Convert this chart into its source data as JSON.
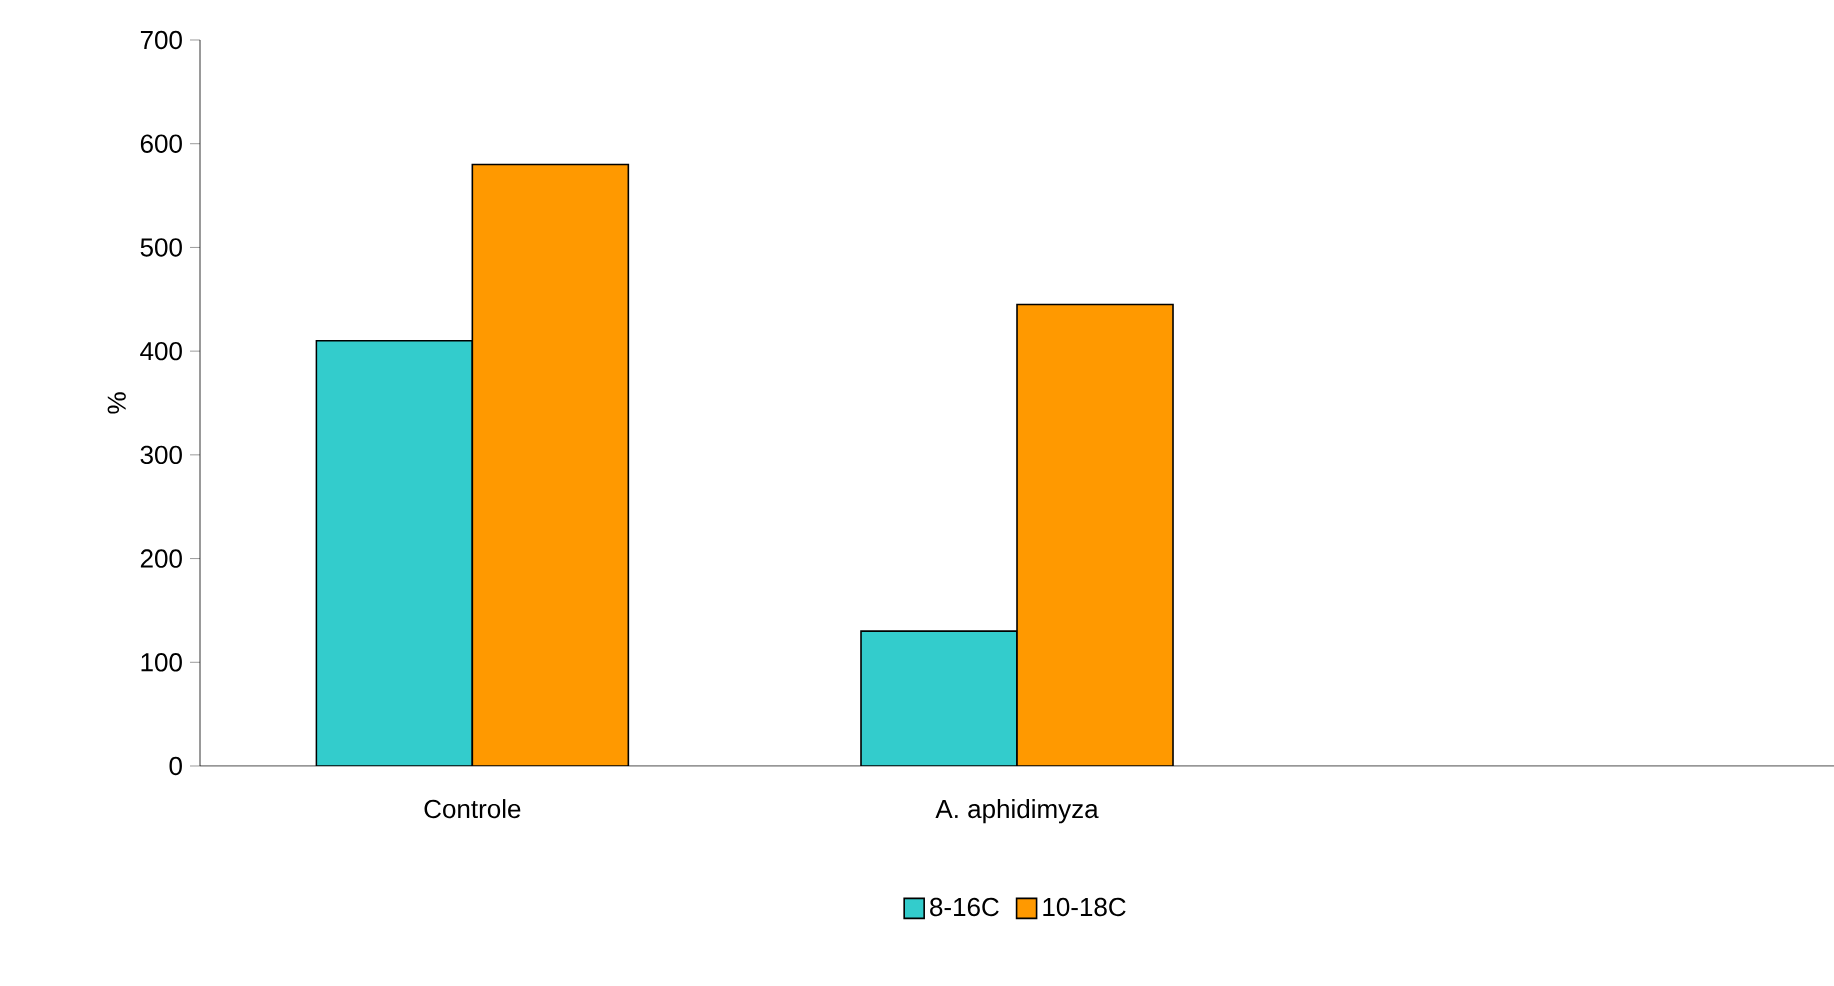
{
  "chart_data": {
    "type": "bar",
    "ylabel": "%",
    "categories": [
      "Controle",
      "A. aphidimyza",
      null
    ],
    "series": [
      {
        "name": "8-16C",
        "color": "#33cccc",
        "values": [
          410,
          130,
          null
        ]
      },
      {
        "name": "10-18C",
        "color": "#ff9900",
        "values": [
          580,
          445,
          null
        ]
      }
    ],
    "ylim": [
      0,
      700
    ],
    "yticks": [
      0,
      100,
      200,
      300,
      400,
      500,
      600,
      700
    ],
    "grid": false,
    "legend": "bottom"
  }
}
